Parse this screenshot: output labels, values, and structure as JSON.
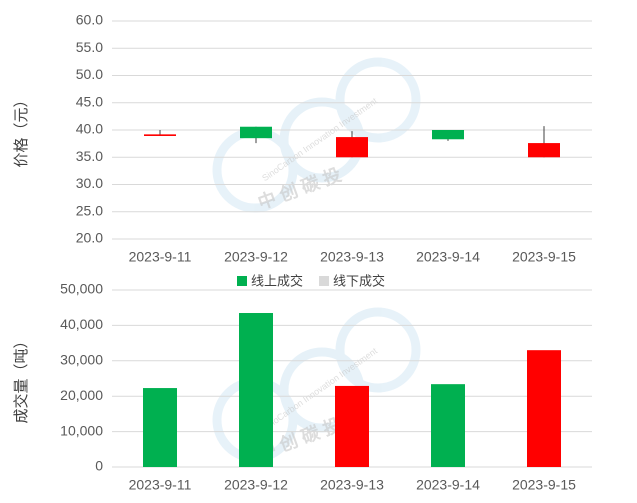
{
  "chart_data": [
    {
      "type": "candlestick",
      "y_label": "价格（元）",
      "categories": [
        "2023-9-11",
        "2023-9-12",
        "2023-9-13",
        "2023-9-14",
        "2023-9-15"
      ],
      "open": [
        38.9,
        40.6,
        35.0,
        40.0,
        35.0
      ],
      "high": [
        40.0,
        40.6,
        39.8,
        40.0,
        40.7
      ],
      "low": [
        38.9,
        37.6,
        35.0,
        38.0,
        35.0
      ],
      "close": [
        39.2,
        38.5,
        38.7,
        38.3,
        37.6
      ],
      "up_color": "#ff0000",
      "down_color": "#00b050",
      "ylim": [
        20,
        60
      ],
      "yticks": [
        {
          "value": 20,
          "label": "20.0"
        },
        {
          "value": 25,
          "label": "25.0"
        },
        {
          "value": 30,
          "label": "30.0"
        },
        {
          "value": 35,
          "label": "35.0"
        },
        {
          "value": 40,
          "label": "40.0"
        },
        {
          "value": 45,
          "label": "45.0"
        },
        {
          "value": 50,
          "label": "50.0"
        },
        {
          "value": 55,
          "label": "55.0"
        },
        {
          "value": 60,
          "label": "60.0"
        }
      ],
      "grid": true
    },
    {
      "type": "bar",
      "y_label": "成交量（吨）",
      "categories": [
        "2023-9-11",
        "2023-9-12",
        "2023-9-13",
        "2023-9-14",
        "2023-9-15"
      ],
      "series": [
        {
          "name": "线上成交",
          "color": "#00b050",
          "colors": [
            "#00b050",
            "#00b050",
            "#ff0000",
            "#00b050",
            "#ff0000"
          ],
          "values": [
            22300,
            43500,
            22900,
            23400,
            33000
          ]
        },
        {
          "name": "线下成交",
          "color": "#d9d9d9",
          "values": [
            null,
            null,
            null,
            null,
            null
          ]
        }
      ],
      "ylim": [
        0,
        50000
      ],
      "yticks": [
        0,
        {
          "value": 10000,
          "label": "10,000"
        },
        {
          "value": 20000,
          "label": "20,000"
        },
        {
          "value": 30000,
          "label": "30,000"
        },
        {
          "value": 40000,
          "label": "40,000"
        },
        {
          "value": 50000,
          "label": "50,000"
        }
      ],
      "grid": true,
      "legend": "top"
    }
  ],
  "watermark": {
    "cn": "中 创 碳 投",
    "en": "SinoCarbon Innovation Investment"
  }
}
